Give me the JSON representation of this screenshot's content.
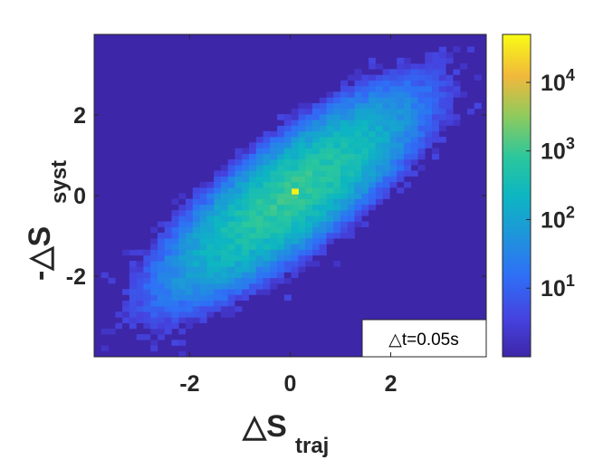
{
  "chart_data": {
    "type": "heatmap",
    "xlabel": {
      "main": "△S",
      "sub": "traj"
    },
    "ylabel": {
      "main": "-△S",
      "sub": "syst"
    },
    "xlim": [
      -3.9,
      3.9
    ],
    "ylim": [
      -4.0,
      4.0
    ],
    "xticks": [
      -2,
      0,
      2
    ],
    "yticks": [
      -2,
      0,
      2
    ],
    "annotation": "△t=0.05s",
    "colormap": "parula",
    "colorbar": {
      "scale": "log",
      "range": [
        1,
        50000
      ],
      "ticks": [
        {
          "value": 10,
          "base": "10",
          "exp": "1"
        },
        {
          "value": 100,
          "base": "10",
          "exp": "2"
        },
        {
          "value": 1000,
          "base": "10",
          "exp": "3"
        },
        {
          "value": 10000,
          "base": "10",
          "exp": "4"
        }
      ]
    },
    "distribution": {
      "shape": "correlated 2D Gaussian along y = x",
      "mean": [
        0,
        0
      ],
      "sigma_along_diagonal": 1.3,
      "sigma_across_diagonal": 0.42,
      "peak_bin": {
        "x": 0.1,
        "y": 0.1,
        "count": 40000
      },
      "bin_width": 0.14
    }
  }
}
